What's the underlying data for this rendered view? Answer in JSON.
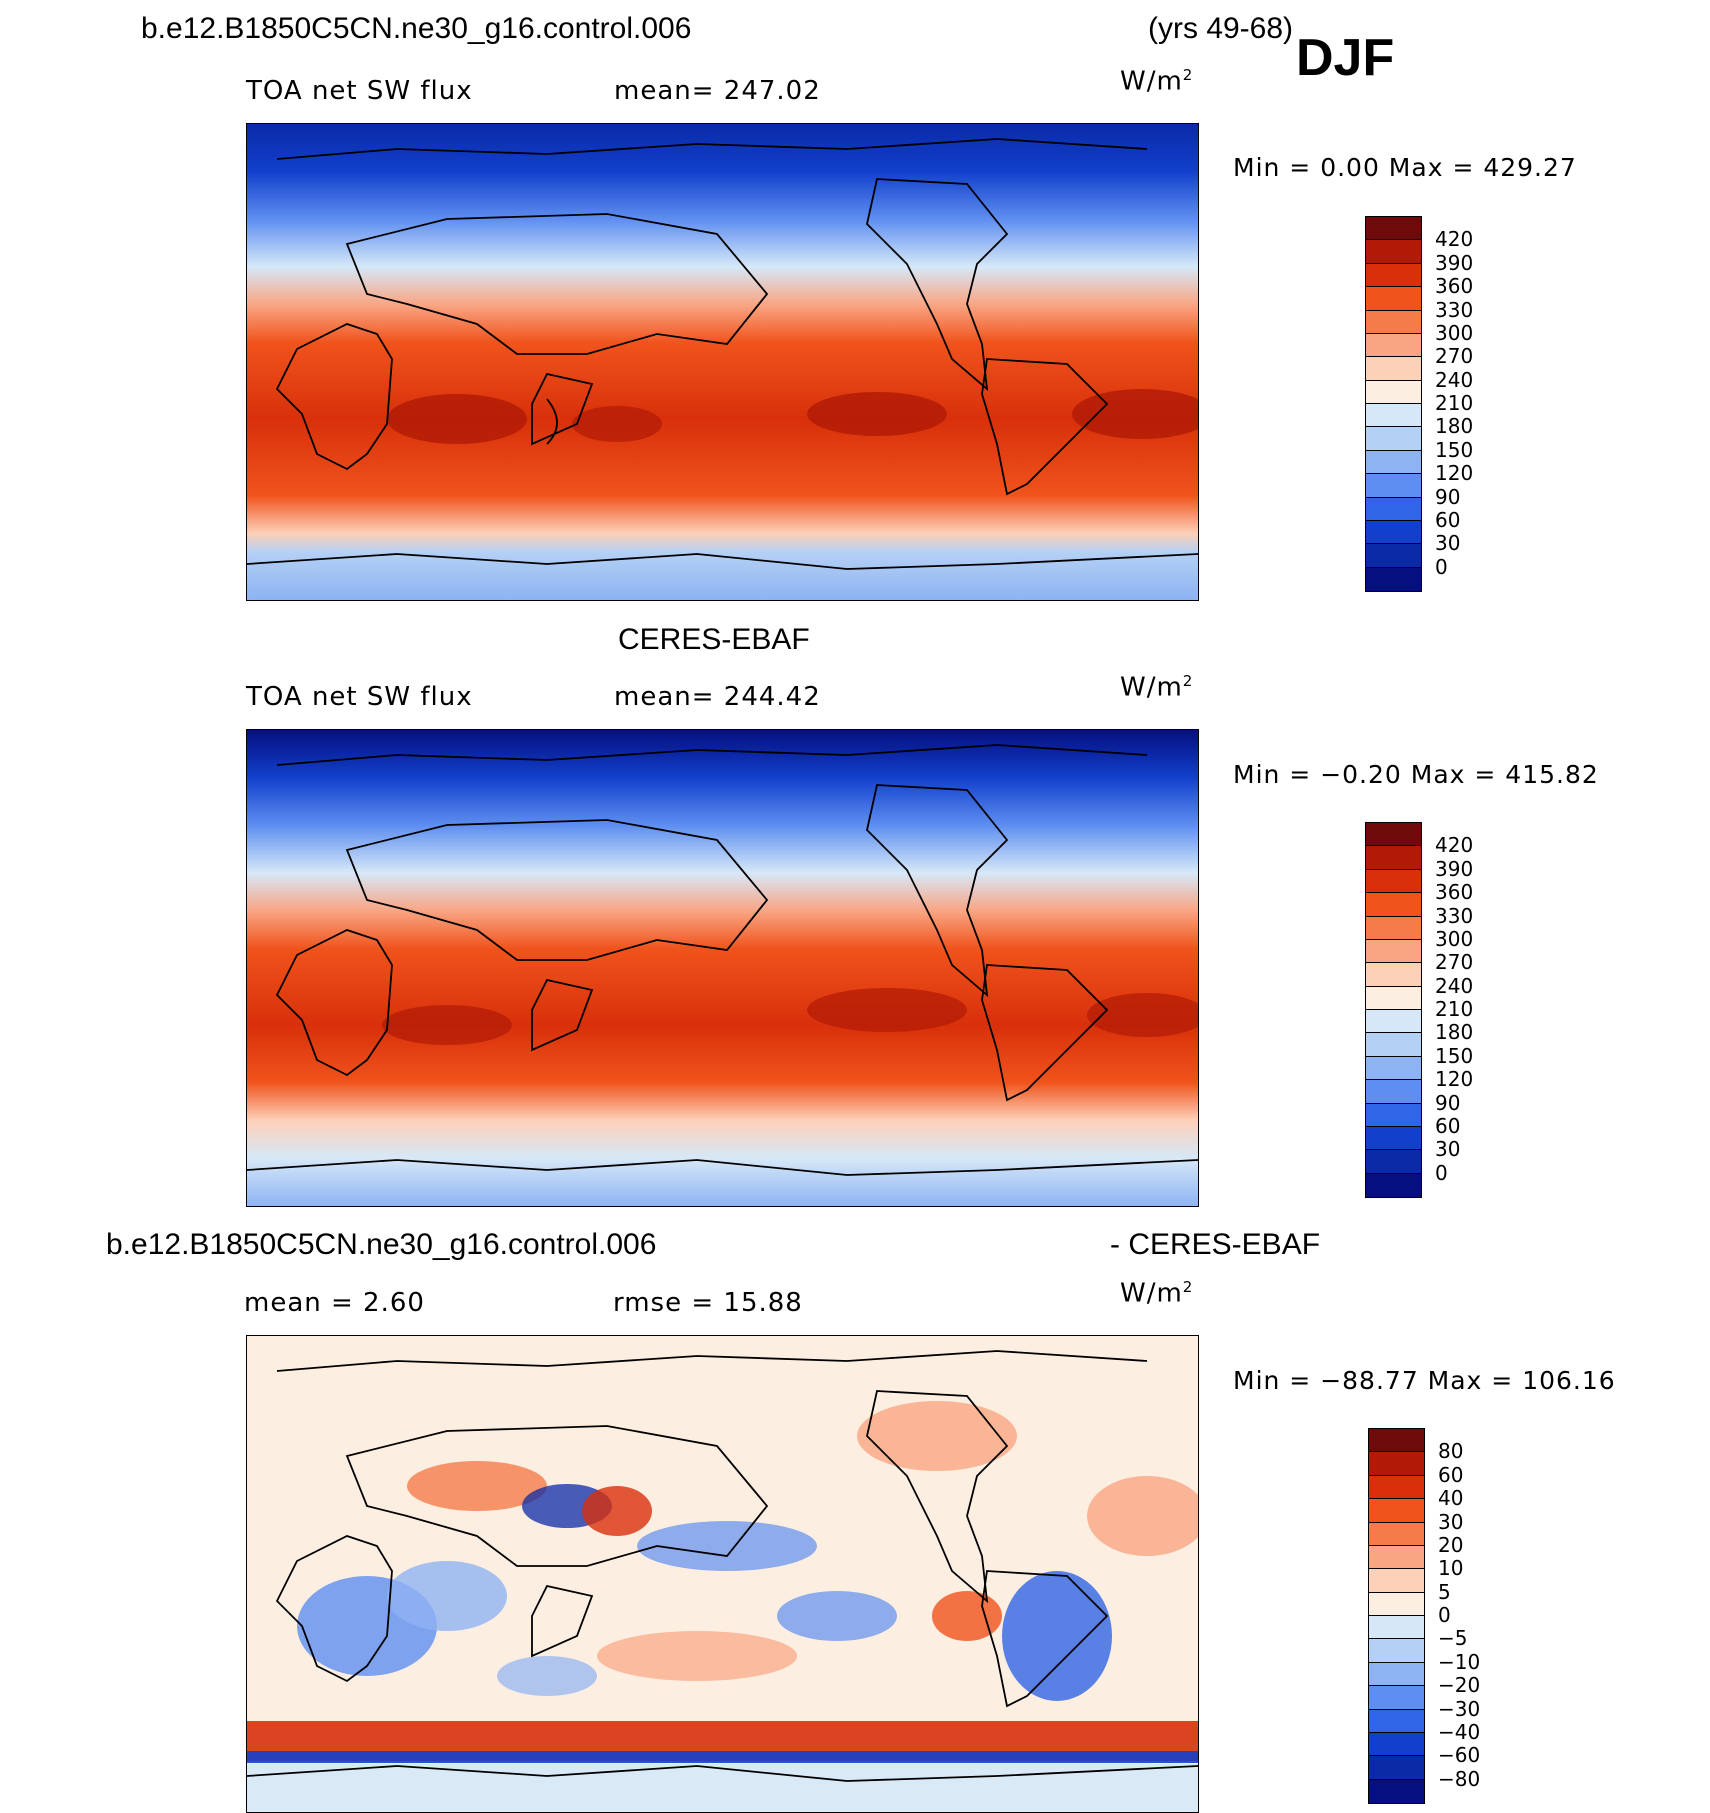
{
  "header": {
    "case_name": "b.e12.B1850C5CN.ne30_g16.control.006",
    "years": "(yrs 49-68)",
    "season": "DJF"
  },
  "panels": [
    {
      "id": "model",
      "title": "",
      "variable": "TOA net SW flux",
      "mean_text": "mean=  247.02",
      "units_base": "W/m",
      "units_exp": "2",
      "minmax_text": "Min =    0.00 Max = 429.27",
      "colorbar": {
        "levels": [
          "420",
          "390",
          "360",
          "330",
          "300",
          "270",
          "240",
          "210",
          "180",
          "150",
          "120",
          "90",
          "60",
          "30",
          "0"
        ],
        "colors": [
          "#6e0a0a",
          "#b01a06",
          "#d8300b",
          "#f0531c",
          "#f57c4a",
          "#f9a583",
          "#fdd0b8",
          "#fdeee2",
          "#d6e8f8",
          "#b4d0f5",
          "#8eb3f3",
          "#5e8ef0",
          "#2f65e6",
          "#1240cc",
          "#0a2aa8",
          "#050f80"
        ]
      }
    },
    {
      "id": "obs",
      "title": "CERES-EBAF",
      "variable": "TOA net SW flux",
      "mean_text": "mean=  244.42",
      "units_base": "W/m",
      "units_exp": "2",
      "minmax_text": "Min =  −0.20 Max = 415.82",
      "colorbar": {
        "levels": [
          "420",
          "390",
          "360",
          "330",
          "300",
          "270",
          "240",
          "210",
          "180",
          "150",
          "120",
          "90",
          "60",
          "30",
          "0"
        ],
        "colors": [
          "#6e0a0a",
          "#b01a06",
          "#d8300b",
          "#f0531c",
          "#f57c4a",
          "#f9a583",
          "#fdd0b8",
          "#fdeee2",
          "#d6e8f8",
          "#b4d0f5",
          "#8eb3f3",
          "#5e8ef0",
          "#2f65e6",
          "#1240cc",
          "#0a2aa8",
          "#050f80"
        ]
      }
    },
    {
      "id": "diff",
      "title_left": "b.e12.B1850C5CN.ne30_g16.control.006",
      "title_right": "- CERES-EBAF",
      "mean_text": "mean =    2.60",
      "rmse_text": "rmse =   15.88",
      "units_base": "W/m",
      "units_exp": "2",
      "minmax_text": "Min = −88.77 Max = 106.16",
      "colorbar": {
        "levels": [
          "80",
          "60",
          "40",
          "30",
          "20",
          "10",
          "5",
          "0",
          "−5",
          "−10",
          "−20",
          "−30",
          "−40",
          "−60",
          "−80"
        ],
        "colors": [
          "#6e0a0a",
          "#b01a06",
          "#d8300b",
          "#f0531c",
          "#f57c4a",
          "#f9a583",
          "#fdd0b8",
          "#fdeee2",
          "#d6e8f8",
          "#b4d0f5",
          "#8eb3f3",
          "#5e8ef0",
          "#2f65e6",
          "#1240cc",
          "#0a2aa8",
          "#050f80"
        ]
      }
    }
  ]
}
